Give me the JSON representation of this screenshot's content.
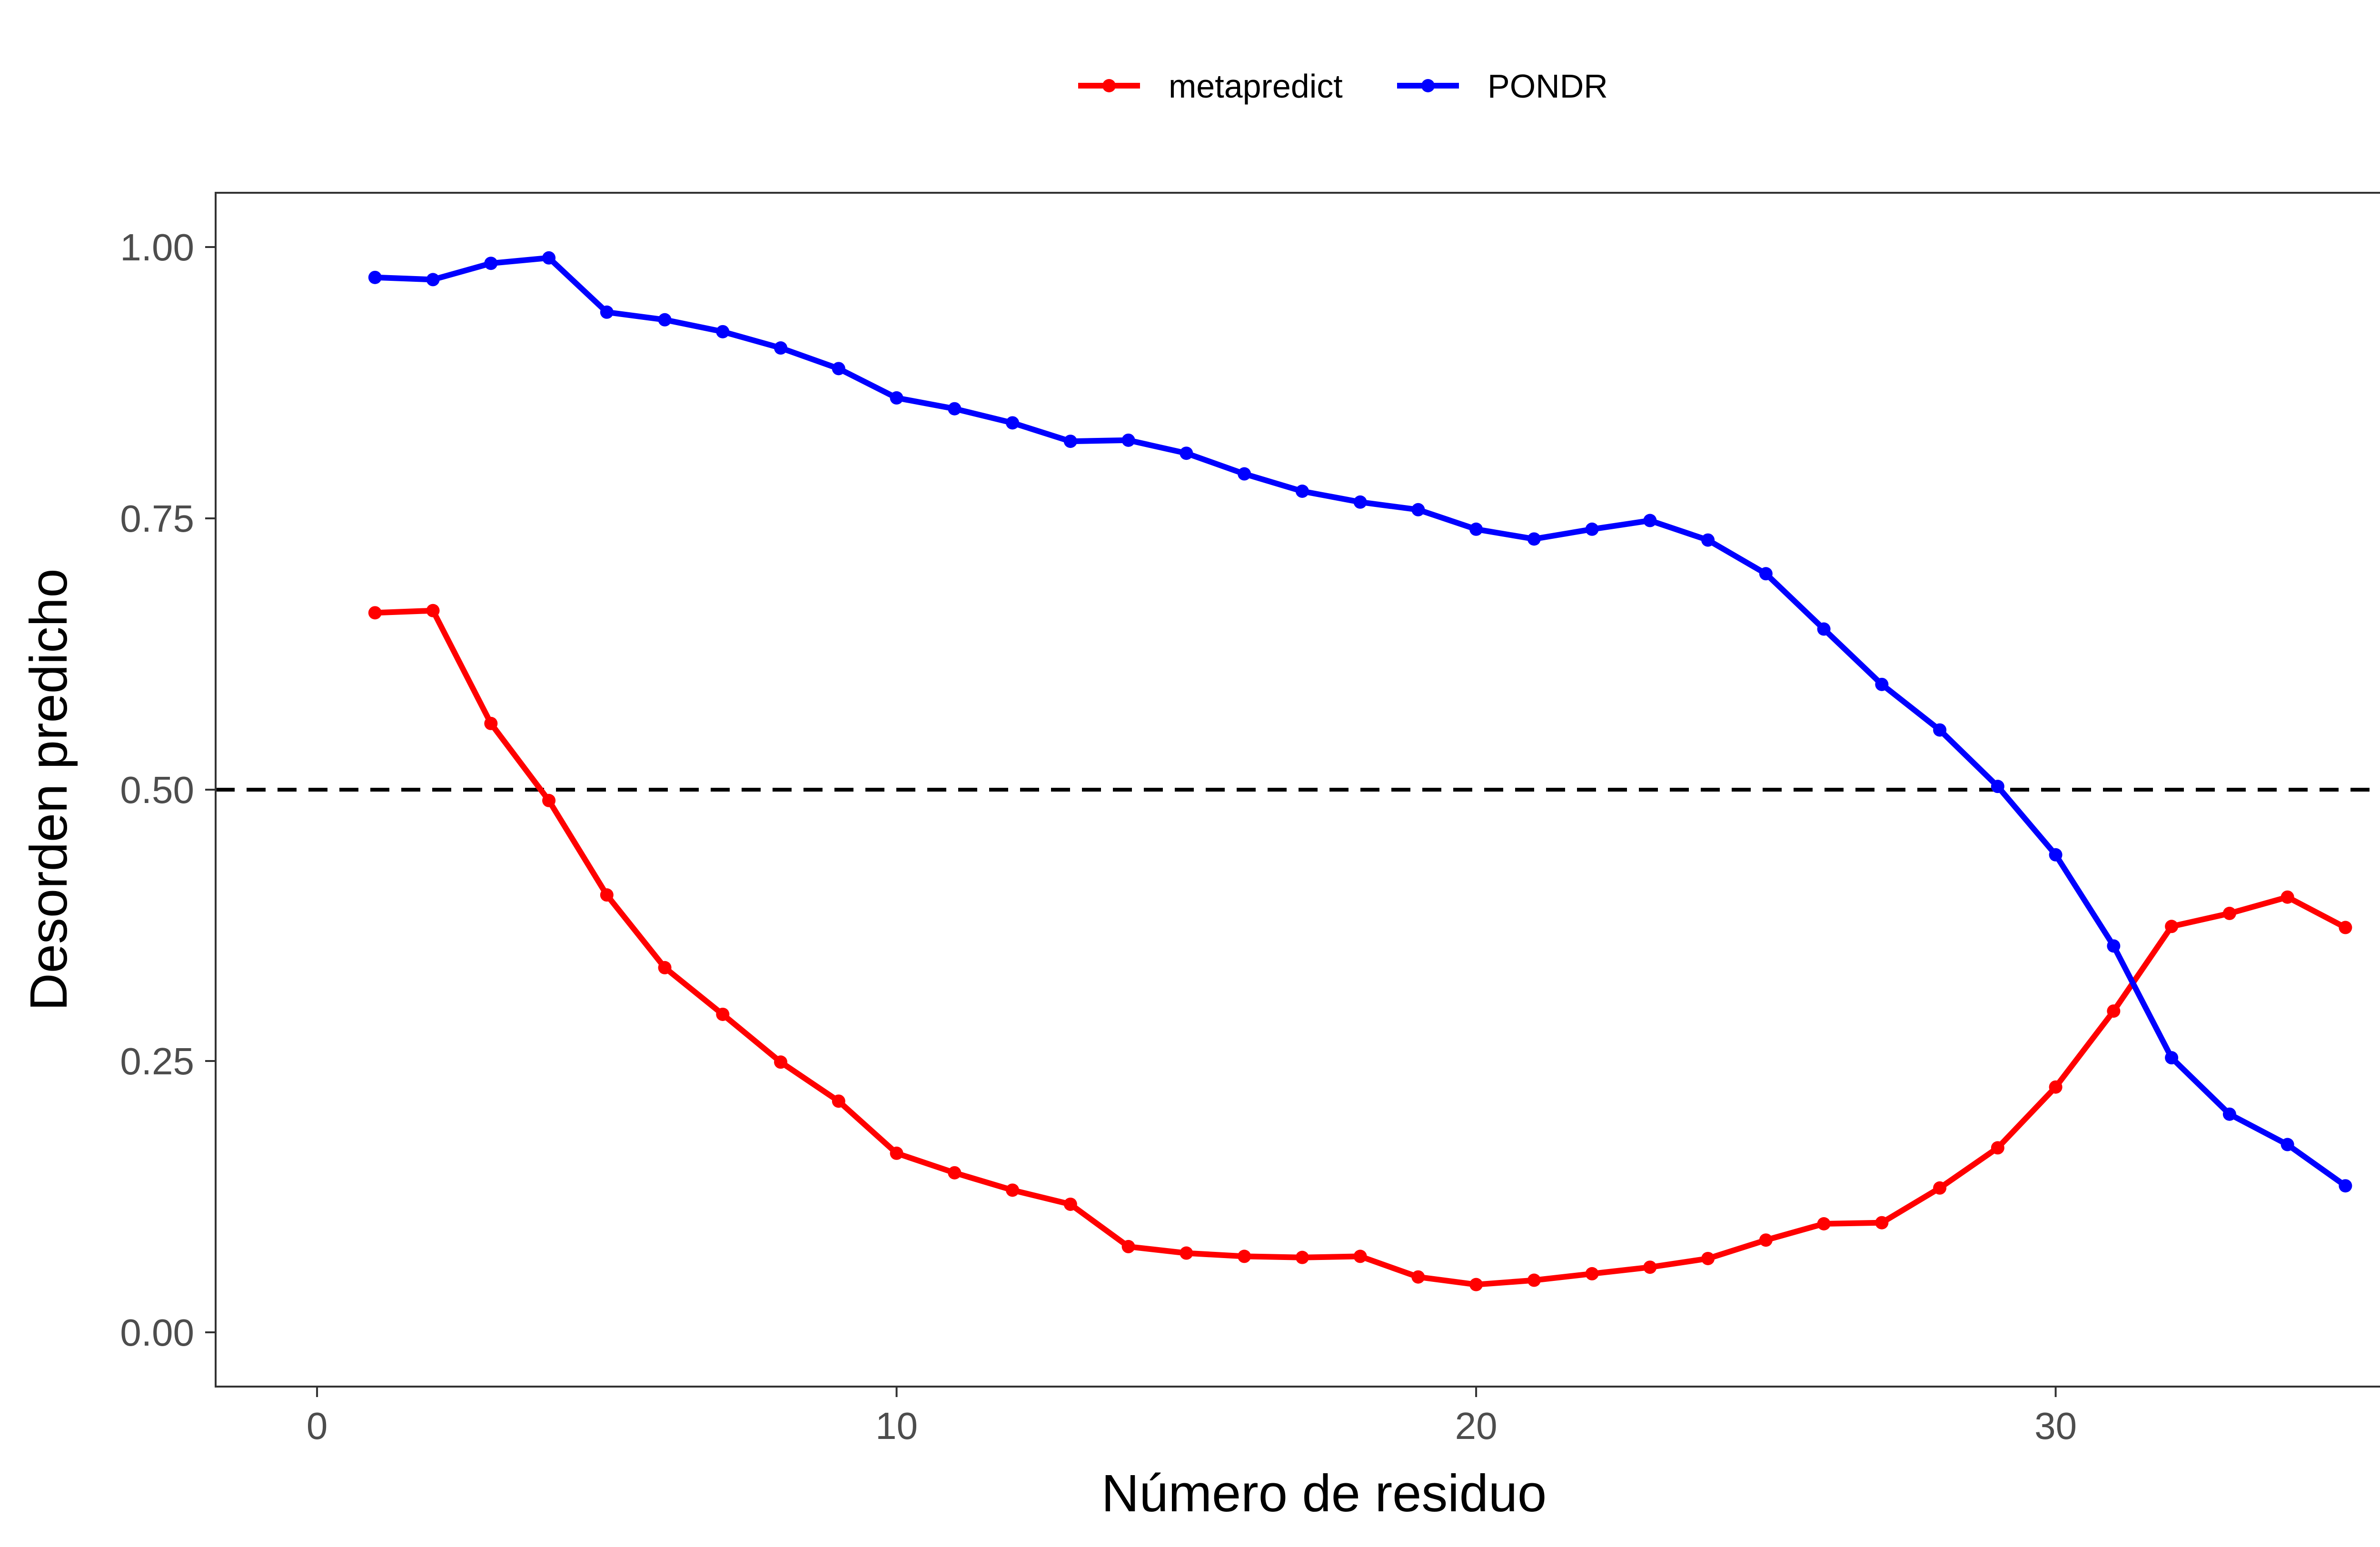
{
  "chart_data": {
    "type": "line",
    "title": "",
    "xlabel": "Número de residuo",
    "ylabel": "Desorden predicho",
    "xlim": [
      -1.75,
      36.5
    ],
    "ylim": [
      -0.05,
      1.05
    ],
    "xticks": [
      0,
      10,
      20,
      30
    ],
    "yticks": [
      0.0,
      0.25,
      0.5,
      0.75,
      1.0
    ],
    "xtick_labels": [
      "0",
      "10",
      "20",
      "30"
    ],
    "ytick_labels": [
      "0.00",
      "0.25",
      "0.50",
      "0.75",
      "1.00"
    ],
    "grid": false,
    "legend_position": "top",
    "threshold": {
      "y": 0.5,
      "style": "dashed",
      "color": "#000000"
    },
    "x": [
      1,
      2,
      3,
      4,
      5,
      6,
      7,
      8,
      9,
      10,
      11,
      12,
      13,
      14,
      15,
      16,
      17,
      18,
      19,
      20,
      21,
      22,
      23,
      24,
      25,
      26,
      27,
      28,
      29,
      30,
      31,
      32,
      33,
      34,
      35
    ],
    "series": [
      {
        "name": "metapredict",
        "color": "#ff0000",
        "values": [
          0.663,
          0.665,
          0.561,
          0.49,
          0.403,
          0.336,
          0.293,
          0.249,
          0.213,
          0.165,
          0.147,
          0.131,
          0.118,
          0.079,
          0.073,
          0.07,
          0.069,
          0.07,
          0.051,
          0.044,
          0.048,
          0.054,
          0.06,
          0.068,
          0.085,
          0.1,
          0.101,
          0.133,
          0.17,
          0.226,
          0.296,
          0.374,
          0.386,
          0.401,
          0.373
        ]
      },
      {
        "name": "PONDR",
        "color": "#0000ff",
        "values": [
          0.972,
          0.97,
          0.985,
          0.99,
          0.94,
          0.933,
          0.922,
          0.907,
          0.888,
          0.861,
          0.851,
          0.838,
          0.821,
          0.822,
          0.81,
          0.791,
          0.775,
          0.765,
          0.758,
          0.74,
          0.731,
          0.74,
          0.748,
          0.73,
          0.699,
          0.648,
          0.597,
          0.555,
          0.503,
          0.44,
          0.356,
          0.253,
          0.201,
          0.173,
          0.135
        ]
      }
    ]
  }
}
